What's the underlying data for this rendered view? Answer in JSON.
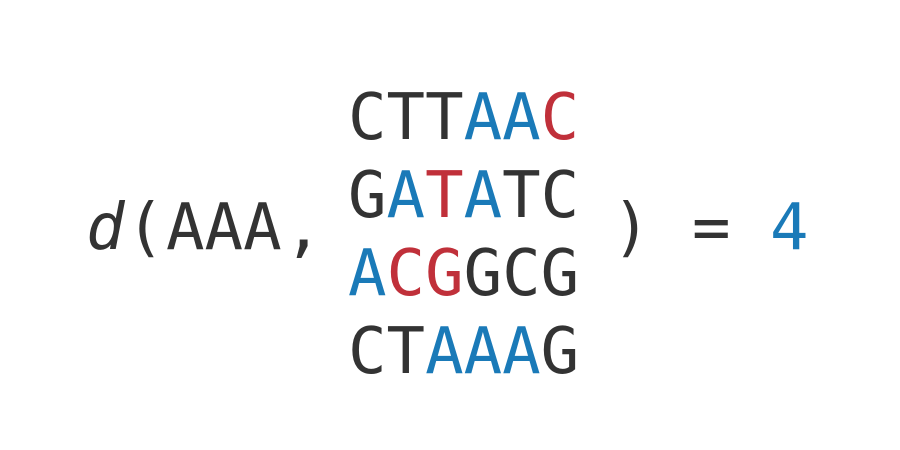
{
  "expression": {
    "function_name": "d",
    "open_paren": "(",
    "query": "AAA",
    "comma": ",",
    "close_paren": ")",
    "equals": "=",
    "result": "4"
  },
  "colors": {
    "text": "#333333",
    "match": "#1a7ab8",
    "mismatch": "#c0303a"
  },
  "sequences": [
    {
      "chars": [
        {
          "c": "C",
          "s": "none"
        },
        {
          "c": "T",
          "s": "none"
        },
        {
          "c": "T",
          "s": "none"
        },
        {
          "c": "A",
          "s": "match"
        },
        {
          "c": "A",
          "s": "match"
        },
        {
          "c": "C",
          "s": "mismatch"
        }
      ]
    },
    {
      "chars": [
        {
          "c": "G",
          "s": "none"
        },
        {
          "c": "A",
          "s": "match"
        },
        {
          "c": "T",
          "s": "mismatch"
        },
        {
          "c": "A",
          "s": "match"
        },
        {
          "c": "T",
          "s": "none"
        },
        {
          "c": "C",
          "s": "none"
        }
      ]
    },
    {
      "chars": [
        {
          "c": "A",
          "s": "match"
        },
        {
          "c": "C",
          "s": "mismatch"
        },
        {
          "c": "G",
          "s": "mismatch"
        },
        {
          "c": "G",
          "s": "none"
        },
        {
          "c": "C",
          "s": "none"
        },
        {
          "c": "G",
          "s": "none"
        }
      ]
    },
    {
      "chars": [
        {
          "c": "C",
          "s": "none"
        },
        {
          "c": "T",
          "s": "none"
        },
        {
          "c": "A",
          "s": "match"
        },
        {
          "c": "A",
          "s": "match"
        },
        {
          "c": "A",
          "s": "match"
        },
        {
          "c": "G",
          "s": "none"
        }
      ]
    }
  ]
}
